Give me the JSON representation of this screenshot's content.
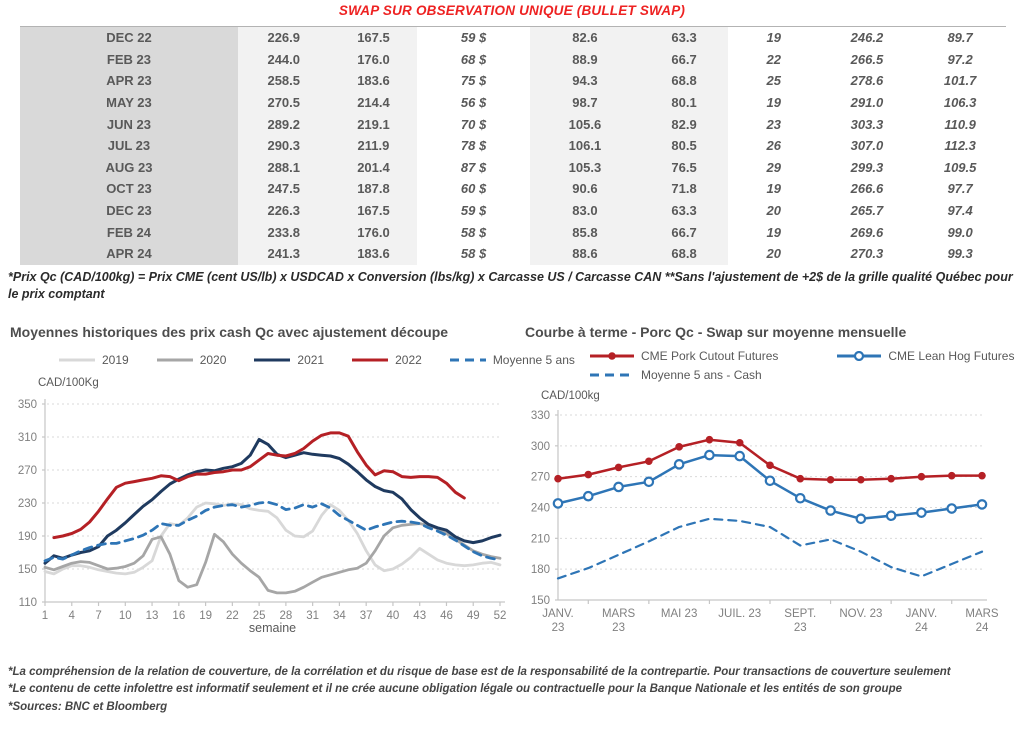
{
  "title": "SWAP SUR OBSERVATION UNIQUE (BULLET SWAP)",
  "colors": {
    "title_red": "#ee2222",
    "table_green": "#00b050",
    "table_blue": "#4472c4",
    "navy": "#1f3a5f",
    "dark_red": "#b52025",
    "steel_blue": "#2e75b6",
    "gray_2020": "#a6a6a6",
    "light_gray_2019": "#d8d8d8"
  },
  "table": {
    "rows": [
      {
        "label": "DEC 22",
        "cells": [
          "226.9",
          "167.5",
          "59 $",
          "82.6",
          "63.3",
          "19",
          "246.2",
          "89.7"
        ]
      },
      {
        "label": "FEB 23",
        "cells": [
          "244.0",
          "176.0",
          "68 $",
          "88.9",
          "66.7",
          "22",
          "266.5",
          "97.2"
        ]
      },
      {
        "label": "APR 23",
        "cells": [
          "258.5",
          "183.6",
          "75 $",
          "94.3",
          "68.8",
          "25",
          "278.6",
          "101.7"
        ]
      },
      {
        "label": "MAY 23",
        "cells": [
          "270.5",
          "214.4",
          "56 $",
          "98.7",
          "80.1",
          "19",
          "291.0",
          "106.3"
        ]
      },
      {
        "label": "JUN 23",
        "cells": [
          "289.2",
          "219.1",
          "70 $",
          "105.6",
          "82.9",
          "23",
          "303.3",
          "110.9"
        ]
      },
      {
        "label": "JUL 23",
        "cells": [
          "290.3",
          "211.9",
          "78 $",
          "106.1",
          "80.5",
          "26",
          "307.0",
          "112.3"
        ]
      },
      {
        "label": "AUG 23",
        "cells": [
          "288.1",
          "201.4",
          "87 $",
          "105.3",
          "76.5",
          "29",
          "299.3",
          "109.5"
        ]
      },
      {
        "label": "OCT 23",
        "cells": [
          "247.5",
          "187.8",
          "60 $",
          "90.6",
          "71.8",
          "19",
          "266.6",
          "97.7"
        ]
      },
      {
        "label": "DEC 23",
        "cells": [
          "226.3",
          "167.5",
          "59 $",
          "83.0",
          "63.3",
          "20",
          "265.7",
          "97.4"
        ]
      },
      {
        "label": "FEB 24",
        "cells": [
          "233.8",
          "176.0",
          "58 $",
          "85.8",
          "66.7",
          "19",
          "269.6",
          "99.0"
        ]
      },
      {
        "label": "APR 24",
        "cells": [
          "241.3",
          "183.6",
          "58 $",
          "88.6",
          "68.8",
          "20",
          "270.3",
          "99.3"
        ]
      }
    ]
  },
  "footnote": "*Prix Qc (CAD/100kg) = Prix CME (cent US/lb) x USDCAD x Conversion (lbs/kg) x Carcasse US / Carcasse CAN **Sans l'ajustement de +2$ de la grille qualité Québec pour le prix comptant",
  "chart_data": [
    {
      "type": "line",
      "title": "Moyennes historiques des prix cash Qc avec ajustement découpe",
      "ylabel": "CAD/100Kg",
      "xlabel": "semaine",
      "ylim": [
        110,
        350
      ],
      "yticks": [
        110,
        150,
        190,
        230,
        270,
        310,
        350
      ],
      "xlim": [
        1,
        52
      ],
      "xticks": [
        1,
        4,
        7,
        10,
        13,
        16,
        19,
        22,
        25,
        28,
        31,
        34,
        37,
        40,
        43,
        46,
        49,
        52
      ],
      "grid": "dashed-horizontal",
      "legend_position": "top",
      "series": [
        {
          "name": "2019",
          "color": "#d8d8d8",
          "style": "solid",
          "width": 2.8,
          "x_start": 1,
          "values": [
            147,
            144,
            150,
            154,
            154,
            152,
            149,
            147,
            145,
            144,
            146,
            152,
            160,
            190,
            205,
            203,
            212,
            225,
            230,
            229,
            227,
            229,
            228,
            223,
            221,
            220,
            212,
            197,
            190,
            189,
            196,
            215,
            228,
            221,
            209,
            193,
            172,
            155,
            148,
            150,
            156,
            164,
            175,
            168,
            161,
            157,
            155,
            154,
            155,
            157,
            158,
            155
          ]
        },
        {
          "name": "2020",
          "color": "#a6a6a6",
          "style": "solid",
          "width": 2.8,
          "x_start": 1,
          "values": [
            152,
            149,
            153,
            157,
            159,
            158,
            154,
            150,
            151,
            153,
            157,
            166,
            186,
            189,
            168,
            136,
            128,
            131,
            158,
            192,
            183,
            168,
            157,
            148,
            140,
            124,
            121,
            121,
            123,
            128,
            134,
            140,
            143,
            146,
            149,
            151,
            157,
            172,
            190,
            200,
            203,
            204,
            205,
            203,
            199,
            193,
            186,
            179,
            172,
            168,
            165,
            163
          ]
        },
        {
          "name": "2021",
          "color": "#1f3a5f",
          "style": "solid",
          "width": 3,
          "x_start": 1,
          "values": [
            157,
            166,
            163,
            167,
            170,
            172,
            177,
            190,
            197,
            206,
            216,
            226,
            234,
            244,
            253,
            259,
            264,
            268,
            270,
            269,
            272,
            274,
            278,
            288,
            307,
            301,
            289,
            285,
            288,
            291,
            289,
            288,
            287,
            284,
            277,
            268,
            258,
            250,
            245,
            243,
            235,
            222,
            212,
            204,
            200,
            197,
            189,
            184,
            182,
            184,
            188,
            191
          ]
        },
        {
          "name": "2022",
          "color": "#b52025",
          "style": "solid",
          "width": 3,
          "x_start": 2,
          "values": [
            188,
            190,
            193,
            198,
            207,
            220,
            235,
            249,
            254,
            256,
            258,
            260,
            263,
            262,
            257,
            262,
            265,
            265,
            267,
            268,
            270,
            270,
            274,
            282,
            290,
            288,
            287,
            290,
            296,
            305,
            312,
            315,
            315,
            311,
            292,
            276,
            264,
            269,
            268,
            262,
            261,
            262,
            262,
            261,
            254,
            243,
            236
          ]
        },
        {
          "name": "Moyenne 5 ans",
          "color": "#2e75b6",
          "style": "dashed",
          "width": 2.8,
          "x_start": 1,
          "values": [
            160,
            164,
            162,
            167,
            172,
            176,
            179,
            181,
            181,
            184,
            187,
            191,
            197,
            205,
            203,
            203,
            209,
            214,
            221,
            225,
            227,
            228,
            225,
            227,
            230,
            231,
            228,
            222,
            224,
            228,
            225,
            229,
            224,
            215,
            209,
            203,
            197,
            201,
            204,
            207,
            208,
            207,
            205,
            200,
            196,
            191,
            185,
            178,
            171,
            166,
            163,
            161
          ]
        }
      ]
    },
    {
      "type": "line",
      "title": "Courbe à terme - Porc Qc - Swap sur moyenne mensuelle",
      "ylabel": "CAD/100kg",
      "ylim": [
        150,
        330
      ],
      "yticks": [
        150,
        180,
        210,
        240,
        270,
        300,
        330
      ],
      "xlim": [
        0,
        14
      ],
      "categories": [
        "JANV. 23",
        "FÉVR. 23",
        "MARS 23",
        "AVR. 23",
        "MAI 23",
        "JUIN 23",
        "JUIL. 23",
        "AOÛT 23",
        "SEPT. 23",
        "OCT. 23",
        "NOV. 23",
        "DÉC. 23",
        "JANV. 24",
        "FÉVR. 24",
        "MARS 24"
      ],
      "xticklabels": [
        {
          "pos": 0,
          "lines": [
            "JANV.",
            "23"
          ]
        },
        {
          "pos": 2,
          "lines": [
            "MARS",
            "23"
          ]
        },
        {
          "pos": 4,
          "lines": [
            "MAI 23"
          ]
        },
        {
          "pos": 6,
          "lines": [
            "JUIL. 23"
          ]
        },
        {
          "pos": 8,
          "lines": [
            "SEPT.",
            "23"
          ]
        },
        {
          "pos": 10,
          "lines": [
            "NOV. 23"
          ]
        },
        {
          "pos": 12,
          "lines": [
            "JANV.",
            "24"
          ]
        },
        {
          "pos": 14,
          "lines": [
            "MARS",
            "24"
          ]
        }
      ],
      "xtickmarks": [
        1,
        3,
        5,
        7,
        9,
        11,
        13
      ],
      "grid": "dashed-horizontal",
      "legend_position": "top",
      "series": [
        {
          "name": "CME Pork Cutout Futures",
          "color": "#b52025",
          "style": "solid",
          "width": 2.5,
          "marker": "filled-circle",
          "x_start": 0,
          "values": [
            268,
            272,
            279,
            285,
            299,
            306,
            303,
            281,
            268,
            267,
            267,
            268,
            270,
            271,
            271
          ]
        },
        {
          "name": "CME Lean Hog Futures",
          "color": "#2e75b6",
          "style": "solid",
          "width": 2.5,
          "marker": "open-circle",
          "x_start": 0,
          "values": [
            244,
            251,
            260,
            265,
            282,
            291,
            290,
            266,
            249,
            237,
            229,
            232,
            235,
            239,
            243
          ]
        },
        {
          "name": "Moyenne 5 ans - Cash",
          "color": "#2e75b6",
          "style": "dashed",
          "width": 2.2,
          "x_start": 0,
          "values": [
            171,
            181,
            194,
            207,
            221,
            229,
            227,
            221,
            203,
            209,
            197,
            182,
            173,
            185,
            197
          ]
        }
      ]
    }
  ],
  "footer": {
    "lines": [
      "*La compréhension de la relation de couverture, de la corrélation et du risque de base est de la responsabilité de la contrepartie. Pour transactions de couverture seulement",
      "*Le contenu de cette infolettre est informatif seulement et il ne crée aucune obligation légale ou contractuelle pour la Banque Nationale et les entités de son groupe",
      "*Sources: BNC et Bloomberg"
    ]
  }
}
